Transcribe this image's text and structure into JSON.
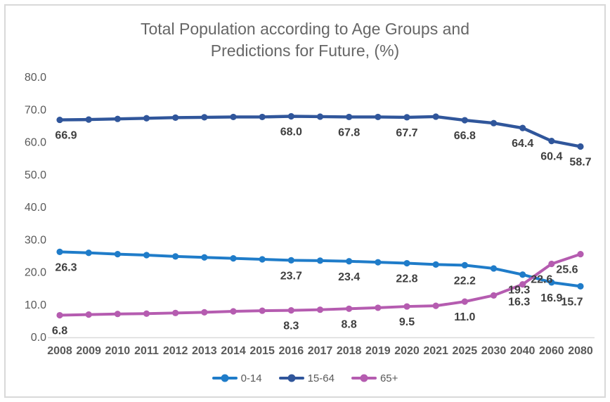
{
  "title": "Total Population according to Age Groups and Predictions for Future, (%)",
  "title_lines": [
    "Total Population according to Age Groups and",
    "Predictions for Future, (%)"
  ],
  "chart_data": {
    "type": "line",
    "categories": [
      "2008",
      "2009",
      "2010",
      "2011",
      "2012",
      "2013",
      "2014",
      "2015",
      "2016",
      "2017",
      "2018",
      "2019",
      "2020",
      "2021",
      "2025",
      "2030",
      "2040",
      "2060",
      "2080"
    ],
    "series": [
      {
        "name": "0-14",
        "color": "#1F7CC9",
        "values": [
          26.3,
          26.0,
          25.6,
          25.3,
          24.9,
          24.6,
          24.3,
          24.0,
          23.7,
          23.6,
          23.4,
          23.1,
          22.8,
          22.4,
          22.2,
          21.2,
          19.3,
          16.9,
          15.7
        ],
        "labels": {
          "2008": "26.3",
          "2016": "23.7",
          "2018": "23.4",
          "2020": "22.8",
          "2025": "22.2",
          "2040": "19.3",
          "2060": "16.9",
          "2080": "15.7"
        }
      },
      {
        "name": "15-64",
        "color": "#30569B",
        "values": [
          66.9,
          67.0,
          67.2,
          67.4,
          67.6,
          67.7,
          67.8,
          67.8,
          68.0,
          67.9,
          67.8,
          67.8,
          67.7,
          67.9,
          66.8,
          65.9,
          64.4,
          60.4,
          58.7
        ],
        "labels": {
          "2008": "66.9",
          "2016": "68.0",
          "2018": "67.8",
          "2020": "67.7",
          "2025": "66.8",
          "2040": "64.4",
          "2060": "60.4",
          "2080": "58.7"
        }
      },
      {
        "name": "65+",
        "color": "#B55CB0",
        "values": [
          6.8,
          7.0,
          7.2,
          7.3,
          7.5,
          7.7,
          8.0,
          8.2,
          8.3,
          8.5,
          8.8,
          9.1,
          9.5,
          9.7,
          11.0,
          12.9,
          16.3,
          22.6,
          25.6
        ],
        "labels": {
          "2008": "6.8",
          "2016": "8.3",
          "2018": "8.8",
          "2020": "9.5",
          "2025": "11.0",
          "2040": "16.3",
          "2060": "22.6",
          "2080": "25.6"
        }
      }
    ],
    "ylim": [
      0,
      80
    ],
    "y_tick_labels": [
      "0.0",
      "10.0",
      "20.0",
      "30.0",
      "40.0",
      "50.0",
      "60.0",
      "70.0",
      "80.0"
    ],
    "xlabel": "",
    "ylabel": "",
    "grid": false,
    "legend_position": "bottom",
    "axis_text_color": "#595959",
    "data_label_color": "#3f3f3f",
    "title_color": "#666666",
    "axis_line_color": "#d9d9d9"
  },
  "legend": {
    "items": [
      {
        "label": "0-14"
      },
      {
        "label": "15-64"
      },
      {
        "label": "65+"
      }
    ]
  }
}
